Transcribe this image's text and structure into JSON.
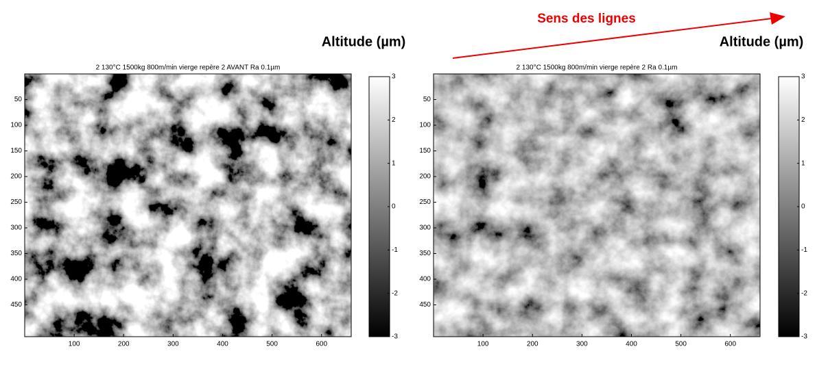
{
  "annotation": "Sens des lignes",
  "chart_data": [
    {
      "type": "heatmap",
      "title": "2 130°C 1500kg 800m/min vierge  repère 2 AVANT Ra 0.1µm",
      "colorbar_label": "Altitude (µm)",
      "colormap": "gray",
      "xlim": [
        0,
        660
      ],
      "xticks": [
        100,
        200,
        300,
        400,
        500,
        600
      ],
      "ylim": [
        0,
        512
      ],
      "yticks": [
        50,
        100,
        150,
        200,
        250,
        300,
        350,
        400,
        450
      ],
      "clim": [
        -3,
        3
      ],
      "cticks": [
        -3,
        -2,
        -1,
        0,
        1,
        2,
        3
      ]
    },
    {
      "type": "heatmap",
      "title": "2 130°C 1500kg 800m/min vierge  repère 2  Ra 0.1µm",
      "colorbar_label": "Altitude (µm)",
      "colormap": "gray",
      "xlim": [
        0,
        660
      ],
      "xticks": [
        100,
        200,
        300,
        400,
        500,
        600
      ],
      "ylim": [
        0,
        512
      ],
      "yticks": [
        50,
        100,
        150,
        200,
        250,
        300,
        350,
        400,
        450
      ],
      "clim": [
        -3,
        3
      ],
      "cticks": [
        -3,
        -2,
        -1,
        0,
        1,
        2,
        3
      ]
    }
  ]
}
